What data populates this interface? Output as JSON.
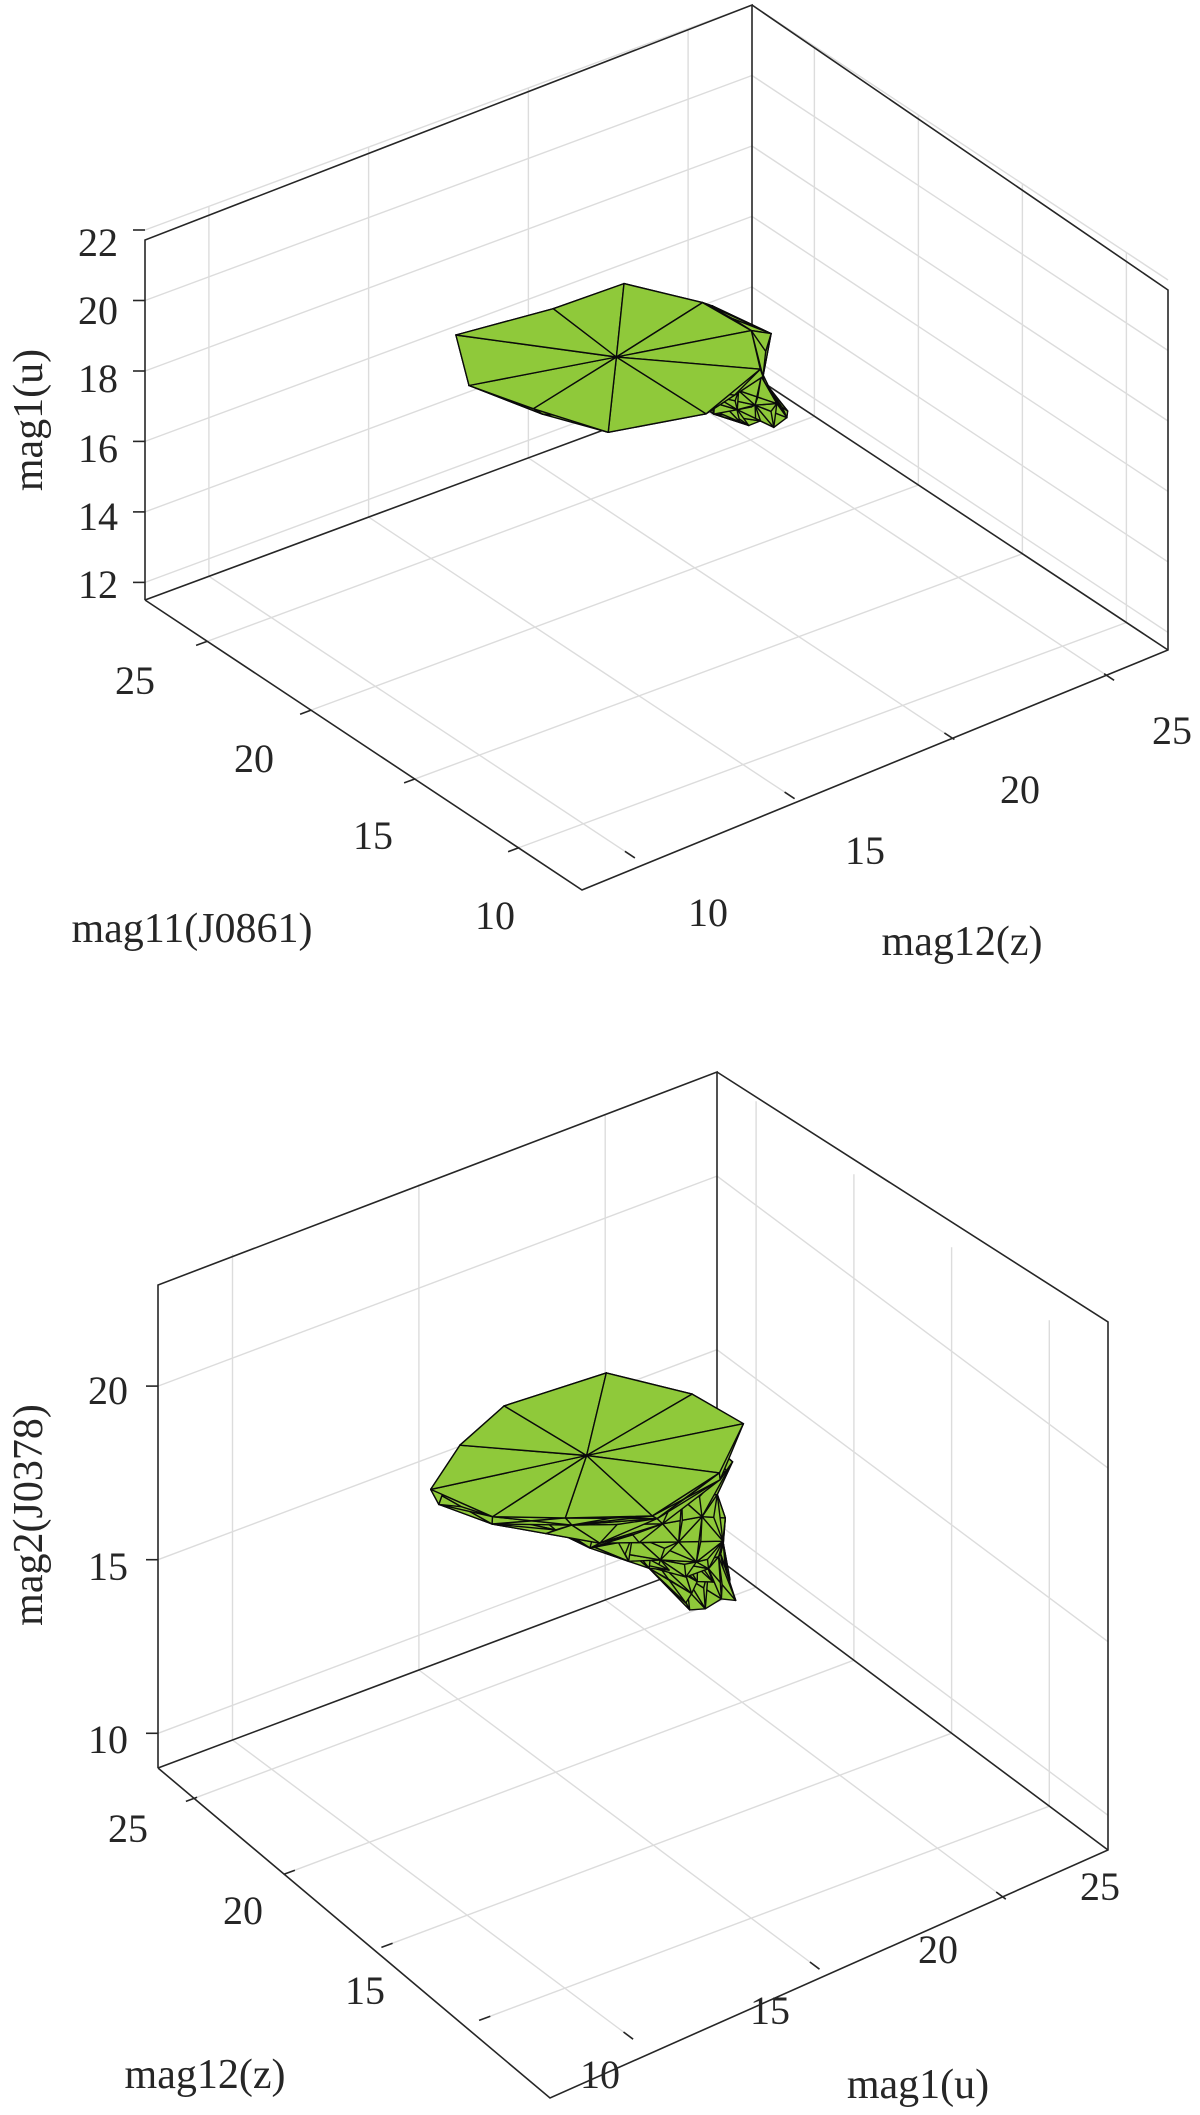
{
  "colors": {
    "surface_fill": "#8fc93a",
    "surface_edge": "#0a0a0a",
    "axis": "#262626",
    "grid": "#dcdcdc"
  },
  "chart_data": [
    {
      "type": "3d-surface",
      "title": "",
      "xlabel": "mag12(z)",
      "ylabel": "mag11(J0861)",
      "zlabel": "mag1(u)",
      "x_ticks": [
        "10",
        "15",
        "20",
        "25"
      ],
      "y_ticks": [
        "10",
        "15",
        "20",
        "25"
      ],
      "z_ticks": [
        "12",
        "14",
        "16",
        "18",
        "20",
        "22"
      ],
      "xlim": [
        7,
        27
      ],
      "ylim": [
        8,
        27
      ],
      "zlim": [
        11.5,
        22
      ],
      "grid": true,
      "description": "triangulated hull surface, narrow at low values, widening near top",
      "spine": [
        {
          "x": 9.0,
          "y": 9.0,
          "z": 11.5,
          "w": 0.6
        },
        {
          "x": 11.0,
          "y": 11.0,
          "z": 13.5,
          "w": 0.9
        },
        {
          "x": 13.0,
          "y": 13.0,
          "z": 15.5,
          "w": 1.2
        },
        {
          "x": 15.0,
          "y": 15.0,
          "z": 17.5,
          "w": 1.6
        },
        {
          "x": 17.5,
          "y": 17.5,
          "z": 19.5,
          "w": 2.2
        },
        {
          "x": 20.5,
          "y": 20.5,
          "z": 21.5,
          "w": 3.2
        },
        {
          "x": 22.0,
          "y": 22.0,
          "z": 22.6,
          "w": 3.8
        }
      ]
    },
    {
      "type": "3d-surface",
      "title": "",
      "xlabel": "mag1(u)",
      "ylabel": "mag12(z)",
      "zlabel": "mag2(J0378)",
      "x_ticks": [
        "10",
        "15",
        "20",
        "25"
      ],
      "y_ticks": [
        "15",
        "20",
        "25"
      ],
      "z_ticks": [
        "10",
        "15",
        "20"
      ],
      "xlim": [
        8,
        28
      ],
      "ylim": [
        12,
        27
      ],
      "zlim": [
        9,
        23
      ],
      "grid": true,
      "description": "triangulated hull surface, narrow at low values, widening near top",
      "spine": [
        {
          "x": 9.5,
          "y": 13.0,
          "z": 9.0,
          "w": 0.6
        },
        {
          "x": 11.5,
          "y": 14.5,
          "z": 11.5,
          "w": 0.9
        },
        {
          "x": 14.0,
          "y": 16.5,
          "z": 14.0,
          "w": 1.3
        },
        {
          "x": 16.5,
          "y": 18.5,
          "z": 16.5,
          "w": 1.7
        },
        {
          "x": 19.0,
          "y": 20.5,
          "z": 19.0,
          "w": 2.3
        },
        {
          "x": 21.5,
          "y": 22.5,
          "z": 21.5,
          "w": 3.0
        },
        {
          "x": 23.0,
          "y": 23.5,
          "z": 22.8,
          "w": 3.5
        }
      ]
    }
  ]
}
